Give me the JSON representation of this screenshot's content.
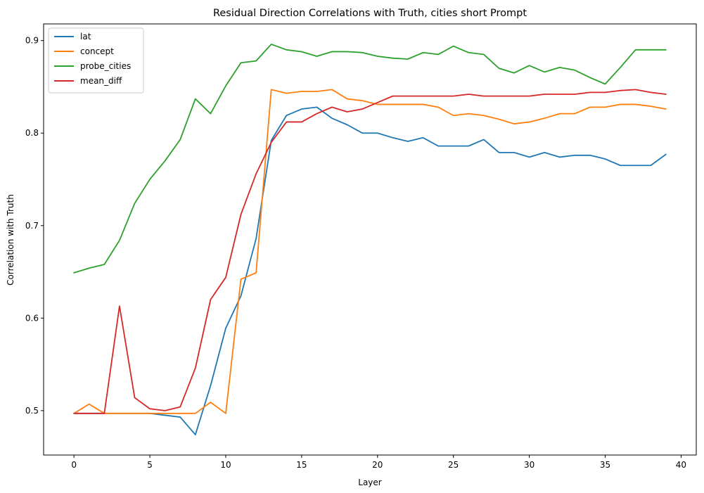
{
  "chart_data": {
    "type": "line",
    "title": "Residual Direction Correlations with Truth, cities short Prompt",
    "xlabel": "Layer",
    "ylabel": "Correlation with Truth",
    "xlim": [
      -2,
      41
    ],
    "ylim": [
      0.452,
      0.918
    ],
    "xticks": [
      0,
      5,
      10,
      15,
      20,
      25,
      30,
      35,
      40
    ],
    "yticks": [
      0.5,
      0.6,
      0.7,
      0.8,
      0.9
    ],
    "grid": false,
    "legend_position": "top-left",
    "x": [
      0,
      1,
      2,
      3,
      4,
      5,
      6,
      7,
      8,
      9,
      10,
      11,
      12,
      13,
      14,
      15,
      16,
      17,
      18,
      19,
      20,
      21,
      22,
      23,
      24,
      25,
      26,
      27,
      28,
      29,
      30,
      31,
      32,
      33,
      34,
      35,
      36,
      37,
      38,
      39
    ],
    "series": [
      {
        "name": "lat",
        "color": "#1f77b4",
        "values": [
          0.497,
          0.497,
          0.497,
          0.497,
          0.497,
          0.497,
          0.495,
          0.493,
          0.474,
          0.527,
          0.589,
          0.624,
          0.686,
          0.792,
          0.819,
          0.826,
          0.828,
          0.816,
          0.809,
          0.8,
          0.8,
          0.795,
          0.791,
          0.795,
          0.786,
          0.786,
          0.786,
          0.793,
          0.779,
          0.779,
          0.774,
          0.779,
          0.774,
          0.776,
          0.776,
          0.772,
          0.765,
          0.765,
          0.765,
          0.777
        ]
      },
      {
        "name": "concept",
        "color": "#ff7f0e",
        "values": [
          0.497,
          0.507,
          0.497,
          0.497,
          0.497,
          0.497,
          0.497,
          0.497,
          0.497,
          0.509,
          0.497,
          0.642,
          0.649,
          0.847,
          0.843,
          0.845,
          0.845,
          0.847,
          0.837,
          0.835,
          0.831,
          0.831,
          0.831,
          0.831,
          0.828,
          0.819,
          0.821,
          0.819,
          0.815,
          0.81,
          0.812,
          0.816,
          0.821,
          0.821,
          0.828,
          0.828,
          0.831,
          0.831,
          0.829,
          0.826
        ]
      },
      {
        "name": "probe_cities",
        "color": "#2ca02c",
        "values": [
          0.649,
          0.654,
          0.658,
          0.684,
          0.724,
          0.75,
          0.77,
          0.793,
          0.837,
          0.821,
          0.851,
          0.876,
          0.878,
          0.896,
          0.89,
          0.888,
          0.883,
          0.888,
          0.888,
          0.887,
          0.883,
          0.881,
          0.88,
          0.887,
          0.885,
          0.894,
          0.887,
          0.885,
          0.87,
          0.865,
          0.873,
          0.866,
          0.871,
          0.868,
          0.86,
          0.853,
          0.871,
          0.89,
          0.89,
          0.89
        ]
      },
      {
        "name": "mean_diff",
        "color": "#d62728",
        "values": [
          0.497,
          0.497,
          0.497,
          0.613,
          0.514,
          0.502,
          0.5,
          0.504,
          0.546,
          0.62,
          0.644,
          0.712,
          0.756,
          0.79,
          0.812,
          0.812,
          0.821,
          0.828,
          0.823,
          0.826,
          0.833,
          0.84,
          0.84,
          0.84,
          0.84,
          0.84,
          0.842,
          0.84,
          0.84,
          0.84,
          0.84,
          0.842,
          0.842,
          0.842,
          0.844,
          0.844,
          0.846,
          0.847,
          0.844,
          0.842
        ]
      }
    ]
  }
}
